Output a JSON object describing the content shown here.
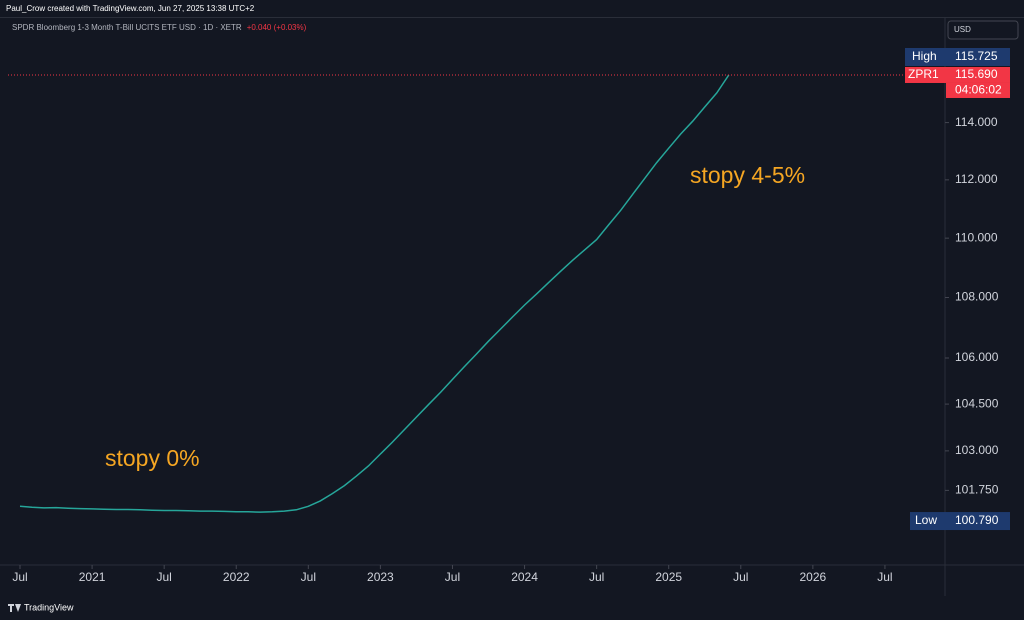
{
  "header": "Paul_Crow created with TradingView.com, Jun 27, 2025 13:38 UTC+2",
  "footer": "TradingView",
  "chart_data": {
    "type": "line",
    "title": "SPDR Bloomberg 1-3 Month T-Bill UCITS ETF USD · 1D · XETR",
    "change": "+0.040 (+0.03%)",
    "currency": "USD",
    "log": true,
    "grid": false,
    "x": [
      "2020-07",
      "2020-08",
      "2020-09",
      "2020-10",
      "2020-11",
      "2020-12",
      "2021-01",
      "2021-02",
      "2021-03",
      "2021-04",
      "2021-05",
      "2021-06",
      "2021-07",
      "2021-08",
      "2021-09",
      "2021-10",
      "2021-11",
      "2021-12",
      "2022-01",
      "2022-02",
      "2022-03",
      "2022-04",
      "2022-05",
      "2022-06",
      "2022-07",
      "2022-08",
      "2022-09",
      "2022-10",
      "2022-11",
      "2022-12",
      "2023-01",
      "2023-02",
      "2023-03",
      "2023-04",
      "2023-05",
      "2023-06",
      "2023-07",
      "2023-08",
      "2023-09",
      "2023-10",
      "2023-11",
      "2023-12",
      "2024-01",
      "2024-02",
      "2024-03",
      "2024-04",
      "2024-05",
      "2024-06",
      "2024-07",
      "2024-08",
      "2024-09",
      "2024-10",
      "2024-11",
      "2024-12",
      "2025-01",
      "2025-02",
      "2025-03",
      "2025-04",
      "2025-05",
      "2025-06"
    ],
    "series": [
      {
        "name": "ZPR1",
        "color": "#26a69a",
        "values": [
          101.25,
          101.22,
          101.2,
          101.21,
          101.19,
          101.18,
          101.17,
          101.16,
          101.15,
          101.15,
          101.14,
          101.13,
          101.12,
          101.12,
          101.11,
          101.1,
          101.1,
          101.09,
          101.08,
          101.08,
          101.07,
          101.08,
          101.1,
          101.14,
          101.25,
          101.42,
          101.65,
          101.9,
          102.2,
          102.52,
          102.9,
          103.28,
          103.68,
          104.08,
          104.48,
          104.88,
          105.3,
          105.72,
          106.13,
          106.55,
          106.95,
          107.35,
          107.75,
          108.12,
          108.5,
          108.88,
          109.25,
          109.6,
          109.95,
          110.45,
          110.95,
          111.5,
          112.05,
          112.6,
          113.1,
          113.6,
          114.05,
          114.55,
          115.05,
          115.69
        ]
      }
    ],
    "xlim": [
      "2020-06",
      "2026-12"
    ],
    "xticks": [
      {
        "value": "2020-07",
        "label": "Jul"
      },
      {
        "value": "2021-01",
        "label": "2021"
      },
      {
        "value": "2021-07",
        "label": "Jul"
      },
      {
        "value": "2022-01",
        "label": "2022"
      },
      {
        "value": "2022-07",
        "label": "Jul"
      },
      {
        "value": "2023-01",
        "label": "2023"
      },
      {
        "value": "2023-07",
        "label": "Jul"
      },
      {
        "value": "2024-01",
        "label": "2024"
      },
      {
        "value": "2024-07",
        "label": "Jul"
      },
      {
        "value": "2025-01",
        "label": "2025"
      },
      {
        "value": "2025-07",
        "label": "Jul"
      },
      {
        "value": "2026-01",
        "label": "2026"
      },
      {
        "value": "2026-07",
        "label": "Jul"
      }
    ],
    "ylim": [
      99.43,
      117.02
    ],
    "yticks": [
      {
        "value": 101.75,
        "label": "101.750"
      },
      {
        "value": 103,
        "label": "103.000"
      },
      {
        "value": 104.5,
        "label": "104.500"
      },
      {
        "value": 106,
        "label": "106.000"
      },
      {
        "value": 108,
        "label": "108.000"
      },
      {
        "value": 110,
        "label": "110.000"
      },
      {
        "value": 112,
        "label": "112.000"
      },
      {
        "value": 114,
        "label": "114.000"
      }
    ],
    "high": {
      "name": "High",
      "value": 115.725,
      "label": "115.725"
    },
    "low": {
      "name": "Low",
      "value": 100.79,
      "label": "100.790"
    },
    "last": {
      "value": 115.69,
      "label": "115.690"
    },
    "countdown": "04:06:02",
    "annotations": [
      "stopy 0%",
      "stopy 4-5%"
    ]
  }
}
